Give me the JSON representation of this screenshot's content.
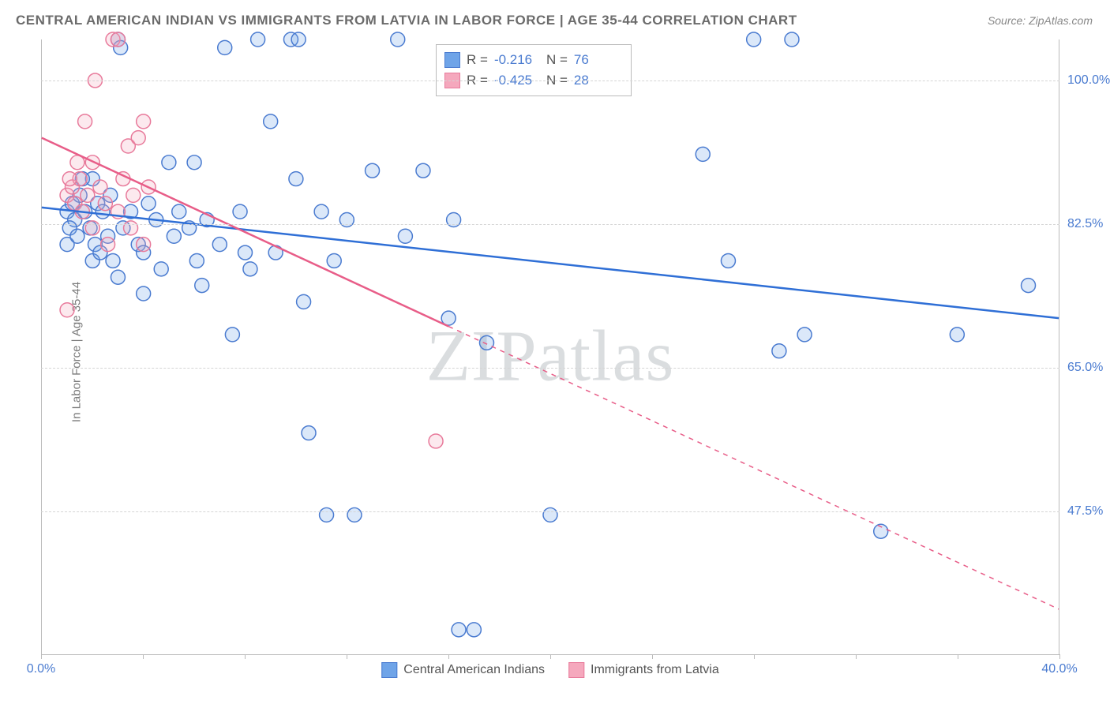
{
  "title": "CENTRAL AMERICAN INDIAN VS IMMIGRANTS FROM LATVIA IN LABOR FORCE | AGE 35-44 CORRELATION CHART",
  "source": "Source: ZipAtlas.com",
  "y_axis_label": "In Labor Force | Age 35-44",
  "watermark": "ZIPatlas",
  "chart": {
    "type": "scatter",
    "background_color": "#ffffff",
    "grid_color": "#d5d5d5",
    "axis_color": "#bbbbbb",
    "tick_label_color": "#4a7bd0",
    "tick_label_fontsize": 16,
    "xlim": [
      0,
      40
    ],
    "ylim": [
      30,
      105
    ],
    "x_ticks": [
      0,
      4,
      8,
      12,
      16,
      20,
      24,
      28,
      32,
      36,
      40
    ],
    "x_tick_labels": {
      "0": "0.0%",
      "40": "40.0%"
    },
    "y_gridlines": [
      47.5,
      65.0,
      82.5,
      100.0
    ],
    "y_tick_labels": [
      "47.5%",
      "65.0%",
      "82.5%",
      "100.0%"
    ],
    "marker_radius": 9,
    "marker_stroke_width": 1.5,
    "marker_fill_opacity": 0.25,
    "line_width": 2.5
  },
  "series": [
    {
      "name": "Central American Indians",
      "color": "#6fa4e8",
      "stroke": "#4a7bd0",
      "line_color": "#2f6fd6",
      "R": "-0.216",
      "N": "76",
      "trend": {
        "x1": 0,
        "y1": 84.5,
        "x2": 40,
        "y2": 71.0,
        "dash": "none"
      },
      "points": [
        [
          1.0,
          84
        ],
        [
          1.2,
          85
        ],
        [
          1.3,
          83
        ],
        [
          1.5,
          86
        ],
        [
          1.7,
          84
        ],
        [
          1.9,
          82
        ],
        [
          2.0,
          88
        ],
        [
          2.1,
          80
        ],
        [
          2.2,
          85
        ],
        [
          2.4,
          84
        ],
        [
          2.6,
          81
        ],
        [
          2.8,
          78
        ],
        [
          3.0,
          105
        ],
        [
          3.1,
          104
        ],
        [
          3.2,
          82
        ],
        [
          3.5,
          84
        ],
        [
          3.8,
          80
        ],
        [
          4.0,
          79
        ],
        [
          4.2,
          85
        ],
        [
          4.5,
          83
        ],
        [
          4.7,
          77
        ],
        [
          5.0,
          90
        ],
        [
          5.2,
          81
        ],
        [
          5.4,
          84
        ],
        [
          5.8,
          82
        ],
        [
          6.0,
          90
        ],
        [
          6.1,
          78
        ],
        [
          6.3,
          75
        ],
        [
          6.5,
          83
        ],
        [
          7.0,
          80
        ],
        [
          7.2,
          104
        ],
        [
          7.5,
          69
        ],
        [
          7.8,
          84
        ],
        [
          8.0,
          79
        ],
        [
          8.2,
          77
        ],
        [
          8.5,
          105
        ],
        [
          9.0,
          95
        ],
        [
          9.2,
          79
        ],
        [
          9.8,
          105
        ],
        [
          10.0,
          88
        ],
        [
          10.1,
          105
        ],
        [
          10.3,
          73
        ],
        [
          10.5,
          57
        ],
        [
          11.0,
          84
        ],
        [
          11.2,
          47
        ],
        [
          11.5,
          78
        ],
        [
          12.0,
          83
        ],
        [
          12.3,
          47
        ],
        [
          13.0,
          89
        ],
        [
          14.0,
          105
        ],
        [
          14.3,
          81
        ],
        [
          15.0,
          89
        ],
        [
          16.0,
          71
        ],
        [
          16.2,
          83
        ],
        [
          16.4,
          33
        ],
        [
          17.0,
          33
        ],
        [
          17.5,
          68
        ],
        [
          20.0,
          47
        ],
        [
          26.0,
          91
        ],
        [
          27.0,
          78
        ],
        [
          28.0,
          105
        ],
        [
          29.0,
          67
        ],
        [
          29.5,
          105
        ],
        [
          30.0,
          69
        ],
        [
          33.0,
          45
        ],
        [
          36.0,
          69
        ],
        [
          38.8,
          75
        ],
        [
          1.0,
          80
        ],
        [
          1.1,
          82
        ],
        [
          1.4,
          81
        ],
        [
          2.0,
          78
        ],
        [
          2.3,
          79
        ],
        [
          3.0,
          76
        ],
        [
          4.0,
          74
        ],
        [
          1.6,
          88
        ],
        [
          2.7,
          86
        ]
      ]
    },
    {
      "name": "Immigrants from Latvia",
      "color": "#f5a8bd",
      "stroke": "#e87a9b",
      "line_color": "#e85d88",
      "R": "-0.425",
      "N": "28",
      "trend_solid": {
        "x1": 0,
        "y1": 93.0,
        "x2": 16,
        "y2": 70.0
      },
      "trend_dash": {
        "x1": 16,
        "y1": 70.0,
        "x2": 40,
        "y2": 35.5
      },
      "points": [
        [
          1.0,
          86
        ],
        [
          1.2,
          87
        ],
        [
          1.3,
          85
        ],
        [
          1.5,
          88
        ],
        [
          1.6,
          84
        ],
        [
          1.8,
          86
        ],
        [
          2.0,
          90
        ],
        [
          2.1,
          100
        ],
        [
          2.3,
          87
        ],
        [
          2.5,
          85
        ],
        [
          2.8,
          105
        ],
        [
          3.0,
          105
        ],
        [
          3.2,
          88
        ],
        [
          3.4,
          92
        ],
        [
          3.6,
          86
        ],
        [
          3.8,
          93
        ],
        [
          4.0,
          95
        ],
        [
          4.2,
          87
        ],
        [
          1.0,
          72
        ],
        [
          1.4,
          90
        ],
        [
          1.7,
          95
        ],
        [
          2.0,
          82
        ],
        [
          2.6,
          80
        ],
        [
          3.0,
          84
        ],
        [
          3.5,
          82
        ],
        [
          4.0,
          80
        ],
        [
          1.1,
          88
        ],
        [
          15.5,
          56
        ]
      ]
    }
  ],
  "legend_top": {
    "R_label": "R =",
    "N_label": "N ="
  },
  "legend_bottom": {
    "label1": "Central American Indians",
    "label2": "Immigrants from Latvia"
  }
}
